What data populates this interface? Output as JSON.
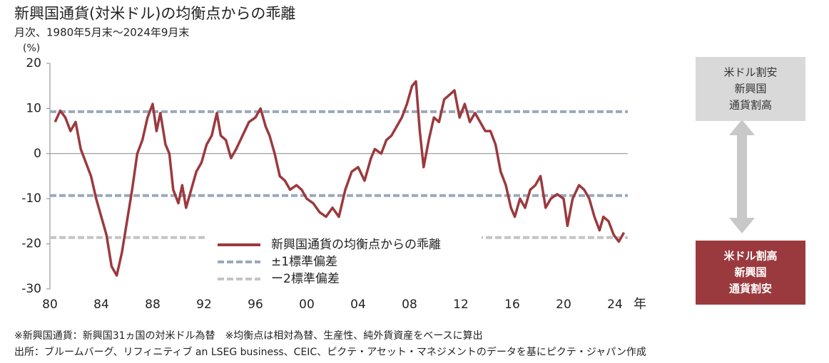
{
  "chart_data": {
    "type": "line",
    "title": "新興国通貨(対米ドル)の均衡点からの乖離",
    "subtitle": "月次、1980年5月末～2024年9月末",
    "y_unit": "(%)",
    "x_unit": "年",
    "xlim": [
      1980,
      2025
    ],
    "ylim": [
      -30,
      20
    ],
    "xticks": [
      {
        "value": 1980,
        "label": "80"
      },
      {
        "value": 1984,
        "label": "84"
      },
      {
        "value": 1988,
        "label": "88"
      },
      {
        "value": 1992,
        "label": "92"
      },
      {
        "value": 1996,
        "label": "96"
      },
      {
        "value": 2000,
        "label": "00"
      },
      {
        "value": 2004,
        "label": "04"
      },
      {
        "value": 2008,
        "label": "08"
      },
      {
        "value": 2012,
        "label": "12"
      },
      {
        "value": 2016,
        "label": "16"
      },
      {
        "value": 2020,
        "label": "20"
      },
      {
        "value": 2024,
        "label": "24"
      }
    ],
    "yticks": [
      -30,
      -20,
      -10,
      0,
      10,
      20
    ],
    "x": [
      1980.4,
      1980.8,
      1981.2,
      1981.6,
      1982.0,
      1982.4,
      1982.8,
      1983.2,
      1983.6,
      1984.0,
      1984.4,
      1984.8,
      1985.2,
      1985.6,
      1986.0,
      1986.4,
      1986.8,
      1987.2,
      1987.6,
      1988.0,
      1988.3,
      1988.6,
      1989.0,
      1989.3,
      1989.6,
      1990.0,
      1990.3,
      1990.6,
      1991.0,
      1991.4,
      1991.8,
      1992.2,
      1992.6,
      1993.0,
      1993.3,
      1993.7,
      1994.1,
      1994.5,
      1995.0,
      1995.5,
      1996.0,
      1996.4,
      1996.8,
      1997.1,
      1997.5,
      1997.9,
      1998.3,
      1998.7,
      1999.2,
      1999.6,
      2000.0,
      2000.5,
      2001.0,
      2001.5,
      2002.0,
      2002.5,
      2003.0,
      2003.5,
      2004.0,
      2004.5,
      2005.0,
      2005.3,
      2005.8,
      2006.2,
      2006.6,
      2007.0,
      2007.4,
      2007.8,
      2008.2,
      2008.5,
      2008.8,
      2009.1,
      2009.5,
      2009.9,
      2010.3,
      2010.7,
      2011.1,
      2011.5,
      2011.9,
      2012.3,
      2012.7,
      2013.1,
      2013.5,
      2013.9,
      2014.3,
      2014.7,
      2015.1,
      2015.5,
      2015.9,
      2016.2,
      2016.6,
      2017.0,
      2017.4,
      2017.8,
      2018.2,
      2018.6,
      2019.0,
      2019.5,
      2020.0,
      2020.3,
      2020.7,
      2021.2,
      2021.6,
      2022.0,
      2022.4,
      2022.8,
      2023.1,
      2023.5,
      2023.9,
      2024.3,
      2024.7
    ],
    "series": [
      {
        "name": "新興国通貨の均衡点からの乖離",
        "color": "#9b3a3e",
        "values": [
          7,
          9.5,
          8,
          5,
          7,
          1,
          -2,
          -5,
          -10,
          -14,
          -18,
          -25,
          -27,
          -22,
          -15,
          -8,
          0,
          3,
          8,
          11,
          5,
          9,
          2,
          0,
          -8,
          -11,
          -7,
          -12,
          -8,
          -4,
          -2,
          2,
          4,
          9,
          4,
          3,
          -1,
          1,
          4,
          7,
          8,
          10,
          6,
          4,
          0,
          -5,
          -6,
          -8,
          -7,
          -8,
          -10,
          -11,
          -13,
          -14,
          -12,
          -14,
          -8,
          -4,
          -3,
          -6,
          -1,
          1,
          0,
          3,
          4,
          6,
          8,
          11,
          15,
          16,
          5,
          -3,
          3,
          8,
          7,
          12,
          13,
          14,
          8,
          11,
          7,
          9,
          7,
          5,
          5,
          2,
          -4,
          -7,
          -12,
          -14,
          -10,
          -12,
          -8,
          -7,
          -5,
          -12,
          -10,
          -9,
          -10,
          -16,
          -10,
          -7,
          -8,
          -10,
          -14,
          -17,
          -14,
          -15,
          -18,
          -19.5,
          -17.5
        ]
      }
    ],
    "reference_lines": [
      {
        "name": "±1標準偏差",
        "color": "#9aa9bb",
        "values": [
          9.3,
          -9.3
        ]
      },
      {
        "name": "ー2標準偏差",
        "color": "#c4c4c4",
        "values": [
          -18.6
        ]
      }
    ],
    "side_notes": [
      {
        "lines": [
          "米ドル割安",
          "新興国",
          "通貨割高"
        ],
        "color": "#d9d9d9"
      },
      {
        "lines": [
          "米ドル割高",
          "新興国",
          "通貨割安"
        ],
        "color": "#9b3a3e"
      }
    ],
    "footnotes": [
      "※新興国通貨：新興国31ヵ国の対米ドル為替　※均衡点は相対為替、生産性、純外貨資産をベースに算出",
      "出所：ブルームバーグ、リフィニティブ an LSEG business、CEIC、ピクテ・アセット・マネジメントのデータを基にピクテ・ジャパン作成"
    ]
  }
}
